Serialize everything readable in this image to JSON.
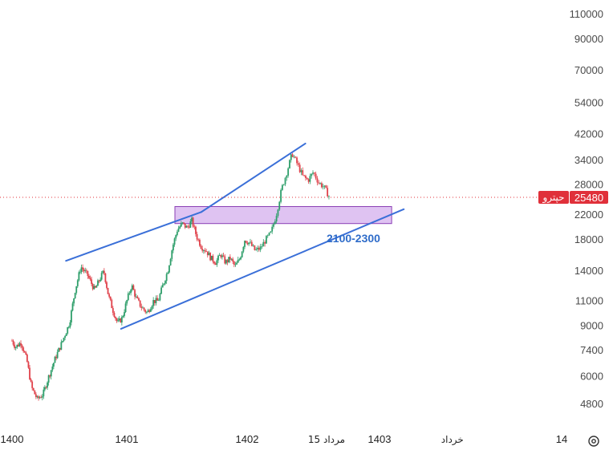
{
  "chart_data": {
    "type": "candlestick",
    "y_scale": "log",
    "grid": false,
    "y_ticks": [
      4800,
      6000,
      7400,
      9000,
      11000,
      14000,
      18000,
      22000,
      28000,
      34000,
      42000,
      54000,
      70000,
      90000,
      110000
    ],
    "x_ticks": [
      {
        "label": "1400",
        "t": 0
      },
      {
        "label": "1401",
        "t": 1
      },
      {
        "label": "1402",
        "t": 2
      },
      {
        "label": "15 مرداد",
        "t": 2.6
      },
      {
        "label": "1403",
        "t": 3
      },
      {
        "label": "خرداد",
        "t": 3.6
      },
      {
        "label": "14",
        "t": 4.5
      }
    ],
    "current_price": {
      "value": 25480,
      "label": "25480",
      "symbol": "حپترو",
      "color": "#e0303a"
    },
    "annotation": {
      "text": "2100-2300",
      "color": "#2f6cc9"
    },
    "zone": {
      "y_low": 20500,
      "y_high": 23500,
      "t_start": 1.4,
      "t_end": 3.1,
      "fill": "#d9b8f0",
      "stroke": "#8b3fb5"
    },
    "trendlines": [
      {
        "name": "upper",
        "points": [
          [
            0.47,
            15200
          ],
          [
            1.62,
            22500
          ]
        ],
        "color": "#3a6fd8"
      },
      {
        "name": "upper2",
        "points": [
          [
            1.62,
            22500
          ],
          [
            2.44,
            39000
          ]
        ],
        "color": "#3a6fd8"
      },
      {
        "name": "lower",
        "points": [
          [
            0.95,
            8800
          ],
          [
            3.2,
            23000
          ]
        ],
        "color": "#3a6fd8"
      }
    ],
    "price_path": [
      [
        0.0,
        8000
      ],
      [
        0.03,
        7600
      ],
      [
        0.08,
        7900
      ],
      [
        0.13,
        6800
      ],
      [
        0.17,
        5500
      ],
      [
        0.22,
        5000
      ],
      [
        0.27,
        5200
      ],
      [
        0.32,
        6000
      ],
      [
        0.38,
        7000
      ],
      [
        0.43,
        7800
      ],
      [
        0.5,
        9200
      ],
      [
        0.55,
        12000
      ],
      [
        0.6,
        14500
      ],
      [
        0.66,
        13500
      ],
      [
        0.72,
        12000
      ],
      [
        0.76,
        13000
      ],
      [
        0.8,
        14000
      ],
      [
        0.84,
        11500
      ],
      [
        0.88,
        10200
      ],
      [
        0.92,
        9200
      ],
      [
        0.96,
        9600
      ],
      [
        1.0,
        11000
      ],
      [
        1.04,
        12500
      ],
      [
        1.08,
        11200
      ],
      [
        1.12,
        10500
      ],
      [
        1.17,
        10000
      ],
      [
        1.22,
        11000
      ],
      [
        1.26,
        11000
      ],
      [
        1.3,
        12500
      ],
      [
        1.34,
        14000
      ],
      [
        1.38,
        17000
      ],
      [
        1.42,
        19500
      ],
      [
        1.46,
        20500
      ],
      [
        1.5,
        19800
      ],
      [
        1.54,
        21000
      ],
      [
        1.58,
        18500
      ],
      [
        1.62,
        17000
      ],
      [
        1.66,
        16500
      ],
      [
        1.7,
        15500
      ],
      [
        1.74,
        15000
      ],
      [
        1.78,
        16000
      ],
      [
        1.82,
        15000
      ],
      [
        1.86,
        15500
      ],
      [
        1.9,
        14500
      ],
      [
        1.94,
        15500
      ],
      [
        1.98,
        18000
      ],
      [
        2.02,
        17500
      ],
      [
        2.06,
        16500
      ],
      [
        2.1,
        16800
      ],
      [
        2.14,
        18000
      ],
      [
        2.18,
        19000
      ],
      [
        2.22,
        22000
      ],
      [
        2.26,
        27000
      ],
      [
        2.3,
        31000
      ],
      [
        2.34,
        36000
      ],
      [
        2.38,
        33000
      ],
      [
        2.42,
        30000
      ],
      [
        2.46,
        29000
      ],
      [
        2.5,
        31000
      ],
      [
        2.54,
        28500
      ],
      [
        2.58,
        27500
      ],
      [
        2.62,
        25480
      ]
    ]
  }
}
